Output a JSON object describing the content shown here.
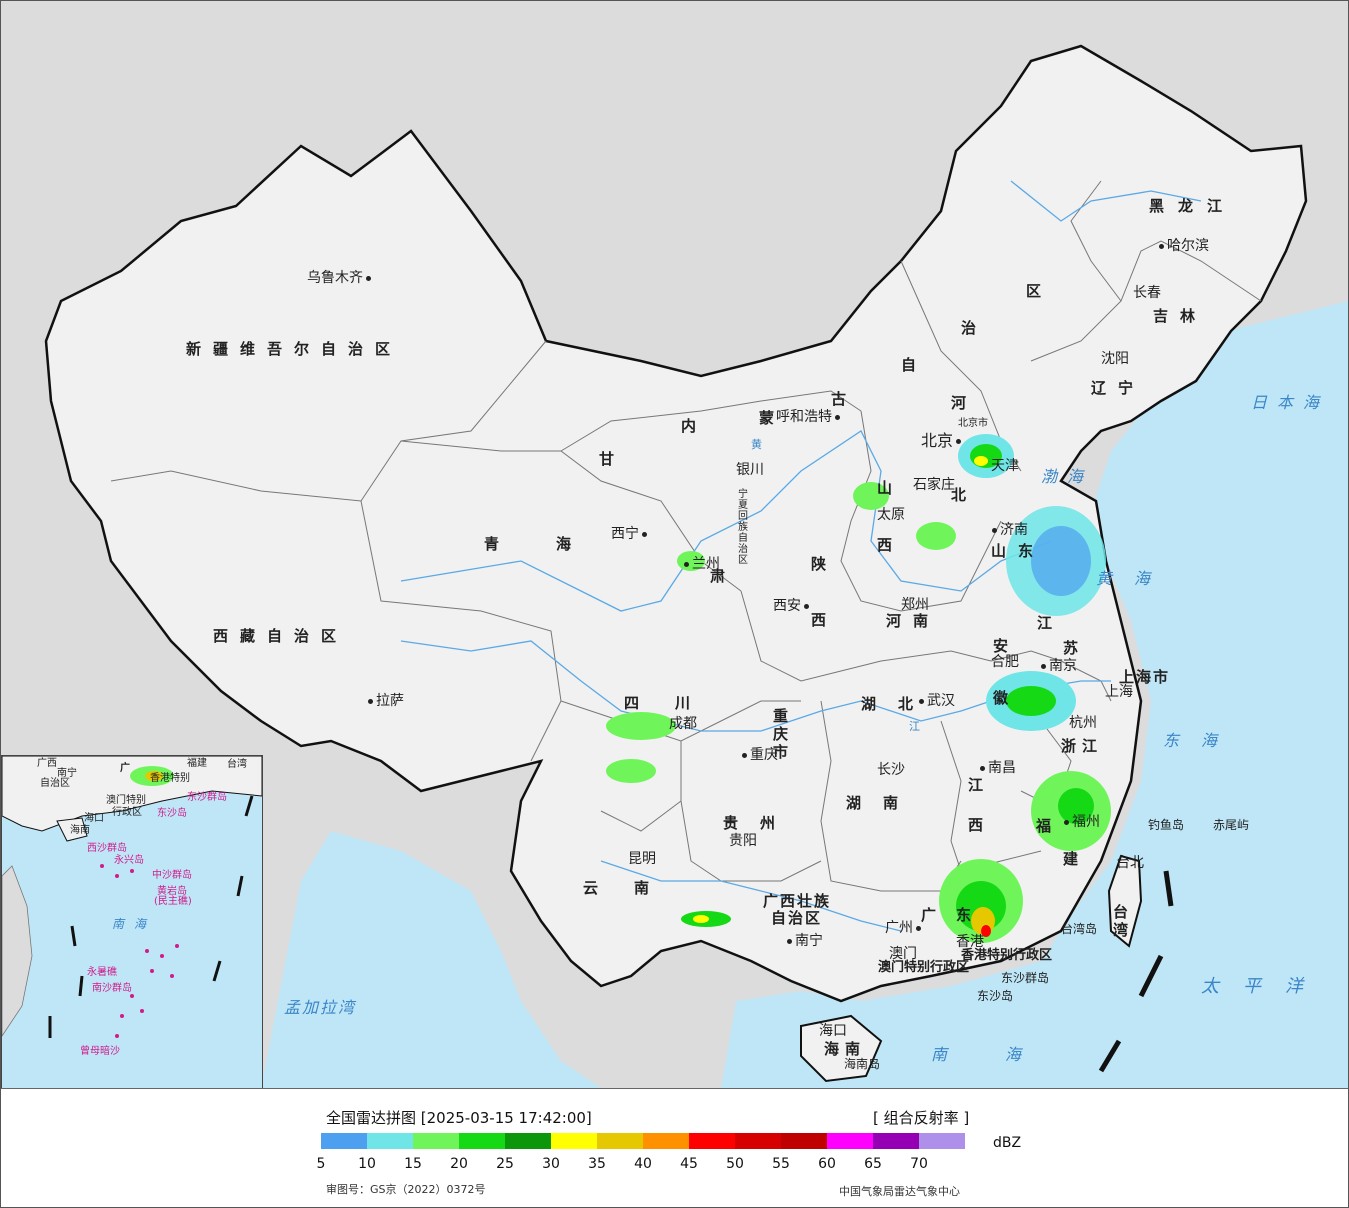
{
  "colors": {
    "land": "#f1f1f1",
    "foreign_land": "#dcdcdc",
    "sea": "#bfe6f7",
    "border": "#111111",
    "province_line": "#777777",
    "river": "#5aa9e6",
    "sea_label": "#3a86c8",
    "island_label": "#d01c8b"
  },
  "map": {
    "cities": [
      {
        "id": "urumqi",
        "name": "乌鲁木齐"
      },
      {
        "id": "lhasa",
        "name": "拉萨"
      },
      {
        "id": "xining",
        "name": "西宁"
      },
      {
        "id": "lanzhou",
        "name": "兰州"
      },
      {
        "id": "yinchuan",
        "name": "银川"
      },
      {
        "id": "hohhot",
        "name": "呼和浩特"
      },
      {
        "id": "beijing",
        "name": "北京"
      },
      {
        "id": "tianjin",
        "name": "天津"
      },
      {
        "id": "shijiazhuang",
        "name": "石家庄"
      },
      {
        "id": "taiyuan",
        "name": "太原"
      },
      {
        "id": "jinan",
        "name": "济南"
      },
      {
        "id": "zhengzhou",
        "name": "郑州"
      },
      {
        "id": "xian",
        "name": "西安"
      },
      {
        "id": "chengdu",
        "name": "成都"
      },
      {
        "id": "chongqing",
        "name": "重庆"
      },
      {
        "id": "guiyang",
        "name": "贵阳"
      },
      {
        "id": "kunming",
        "name": "昆明"
      },
      {
        "id": "nanning",
        "name": "南宁"
      },
      {
        "id": "guangzhou",
        "name": "广州"
      },
      {
        "id": "hongkong",
        "name": "香港"
      },
      {
        "id": "macau",
        "name": "澳门"
      },
      {
        "id": "haikou",
        "name": "海口"
      },
      {
        "id": "changsha",
        "name": "长沙"
      },
      {
        "id": "wuhan",
        "name": "武汉"
      },
      {
        "id": "nanchang",
        "name": "南昌"
      },
      {
        "id": "hefei",
        "name": "合肥"
      },
      {
        "id": "nanjing",
        "name": "南京"
      },
      {
        "id": "shanghai",
        "name": "上海"
      },
      {
        "id": "hangzhou",
        "name": "杭州"
      },
      {
        "id": "fuzhou",
        "name": "福州"
      },
      {
        "id": "taipei",
        "name": "台北"
      },
      {
        "id": "shenyang",
        "name": "沈阳"
      },
      {
        "id": "changchun",
        "name": "长春"
      },
      {
        "id": "harbin",
        "name": "哈尔滨"
      }
    ],
    "provinces": [
      {
        "id": "xinjiang",
        "name": "新疆维吾尔自治区"
      },
      {
        "id": "tibet",
        "name": "西藏自治区"
      },
      {
        "id": "qinghai_a",
        "name": "青"
      },
      {
        "id": "qinghai_b",
        "name": "海"
      },
      {
        "id": "gansu_a",
        "name": "甘"
      },
      {
        "id": "gansu_b",
        "name": "肃"
      },
      {
        "id": "nmg_a",
        "name": "内"
      },
      {
        "id": "nmg_b",
        "name": "蒙"
      },
      {
        "id": "nmg_c",
        "name": "古"
      },
      {
        "id": "nmg_d",
        "name": "自"
      },
      {
        "id": "nmg_e",
        "name": "治"
      },
      {
        "id": "nmg_f",
        "name": "区"
      },
      {
        "id": "heilongjiang",
        "name": "黑龙江"
      },
      {
        "id": "jilin",
        "name": "吉林"
      },
      {
        "id": "liaoning",
        "name": "辽宁"
      },
      {
        "id": "hebei_a",
        "name": "河"
      },
      {
        "id": "hebei_b",
        "name": "北"
      },
      {
        "id": "shanxi_a",
        "name": "山"
      },
      {
        "id": "shanxi_b",
        "name": "西"
      },
      {
        "id": "shandong",
        "name": "山东"
      },
      {
        "id": "henan",
        "name": "河南"
      },
      {
        "id": "shaanxi_a",
        "name": "陕"
      },
      {
        "id": "shaanxi_b",
        "name": "西"
      },
      {
        "id": "sichuan",
        "name": "四川"
      },
      {
        "id": "chongqing_p",
        "name": "重庆市"
      },
      {
        "id": "hubei",
        "name": "湖北"
      },
      {
        "id": "hunan",
        "name": "湖南"
      },
      {
        "id": "guizhou",
        "name": "贵州"
      },
      {
        "id": "yunnan",
        "name": "云南"
      },
      {
        "id": "guangxi",
        "name": "广西壮族"
      },
      {
        "id": "guangxi_b",
        "name": "自治区"
      },
      {
        "id": "guangdong_a",
        "name": "广"
      },
      {
        "id": "guangdong_b",
        "name": "东"
      },
      {
        "id": "hainan",
        "name": "海南"
      },
      {
        "id": "jiangxi_a",
        "name": "江"
      },
      {
        "id": "jiangxi_b",
        "name": "西"
      },
      {
        "id": "fujian_a",
        "name": "福"
      },
      {
        "id": "fujian_b",
        "name": "建"
      },
      {
        "id": "zhejiang",
        "name": "浙江"
      },
      {
        "id": "jiangsu_a",
        "name": "江"
      },
      {
        "id": "jiangsu_b",
        "name": "苏"
      },
      {
        "id": "anhui_a",
        "name": "安"
      },
      {
        "id": "anhui_b",
        "name": "徽"
      },
      {
        "id": "shanghai_p",
        "name": "上海市"
      },
      {
        "id": "taiwan",
        "name": "台湾"
      },
      {
        "id": "ningxia",
        "name": "宁夏回族自治区"
      },
      {
        "id": "beijing_p",
        "name": "北京市"
      },
      {
        "id": "hk_sar",
        "name": "香港特别行政区"
      },
      {
        "id": "macau_sar",
        "name": "澳门特别行政区"
      }
    ],
    "seas": [
      {
        "id": "japan_sea",
        "name": "日本海"
      },
      {
        "id": "bohai",
        "name": "渤海"
      },
      {
        "id": "yellow_sea",
        "name": "黄海"
      },
      {
        "id": "east_sea",
        "name": "东海"
      },
      {
        "id": "south_sea",
        "name": "南海"
      },
      {
        "id": "pacific",
        "name": "太平洋"
      },
      {
        "id": "bengal",
        "name": "孟加拉湾"
      }
    ],
    "islands": [
      {
        "id": "diaoyu",
        "name": "钓鱼岛"
      },
      {
        "id": "chiwei",
        "name": "赤尾屿"
      },
      {
        "id": "taiwan_island",
        "name": "台湾岛"
      },
      {
        "id": "dongsha_qd",
        "name": "东沙群岛"
      },
      {
        "id": "dongsha",
        "name": "东沙岛"
      },
      {
        "id": "hainan_island",
        "name": "海南岛"
      }
    ],
    "rivers": [
      {
        "id": "yellow_river",
        "name": "黄"
      },
      {
        "id": "yangtze",
        "name": "江"
      }
    ]
  },
  "inset": {
    "labels": [
      {
        "id": "gx",
        "name": "广西"
      },
      {
        "id": "gx2",
        "name": "自治区"
      },
      {
        "id": "nn",
        "name": "南宁"
      },
      {
        "id": "gd",
        "name": "广"
      },
      {
        "id": "fj",
        "name": "福建"
      },
      {
        "id": "tw",
        "name": "台湾"
      },
      {
        "id": "hk",
        "name": "香港特别"
      },
      {
        "id": "macau",
        "name": "澳门特别"
      },
      {
        "id": "xzq",
        "name": "行政区"
      },
      {
        "id": "dsqd",
        "name": "东沙群岛"
      },
      {
        "id": "dsd",
        "name": "东沙岛"
      },
      {
        "id": "hainan",
        "name": "海南"
      },
      {
        "id": "hk2",
        "name": "海口"
      },
      {
        "id": "xsqd",
        "name": "西沙群岛"
      },
      {
        "id": "yxd",
        "name": "永兴岛"
      },
      {
        "id": "zsqd",
        "name": "中沙群岛"
      },
      {
        "id": "hyd",
        "name": "黄岩岛"
      },
      {
        "id": "mzqd",
        "name": "(民主礁)"
      },
      {
        "id": "nh",
        "name": "南海"
      },
      {
        "id": "ysj",
        "name": "永暑礁"
      },
      {
        "id": "nsqd",
        "name": "南沙群岛"
      },
      {
        "id": "zmas",
        "name": "曾母暗沙"
      }
    ]
  },
  "legend": {
    "title": "全国雷达拼图 [2025-03-15 17:42:00]",
    "product": "[ 组合反射率 ]",
    "unit": "dBZ",
    "scale_colors": [
      "#4d9ff0",
      "#6fe5e8",
      "#6ff55a",
      "#16d916",
      "#0c960c",
      "#ffff00",
      "#e6c800",
      "#ff9000",
      "#ff0000",
      "#d60000",
      "#c00000",
      "#ff00ff",
      "#9600b4",
      "#ae90ea"
    ],
    "ticks": [
      "5",
      "10",
      "15",
      "20",
      "25",
      "30",
      "35",
      "40",
      "45",
      "50",
      "55",
      "60",
      "65",
      "70"
    ],
    "approval": "审图号：GS京（2022）0372号",
    "producer": "中国气象局雷达气象中心"
  }
}
